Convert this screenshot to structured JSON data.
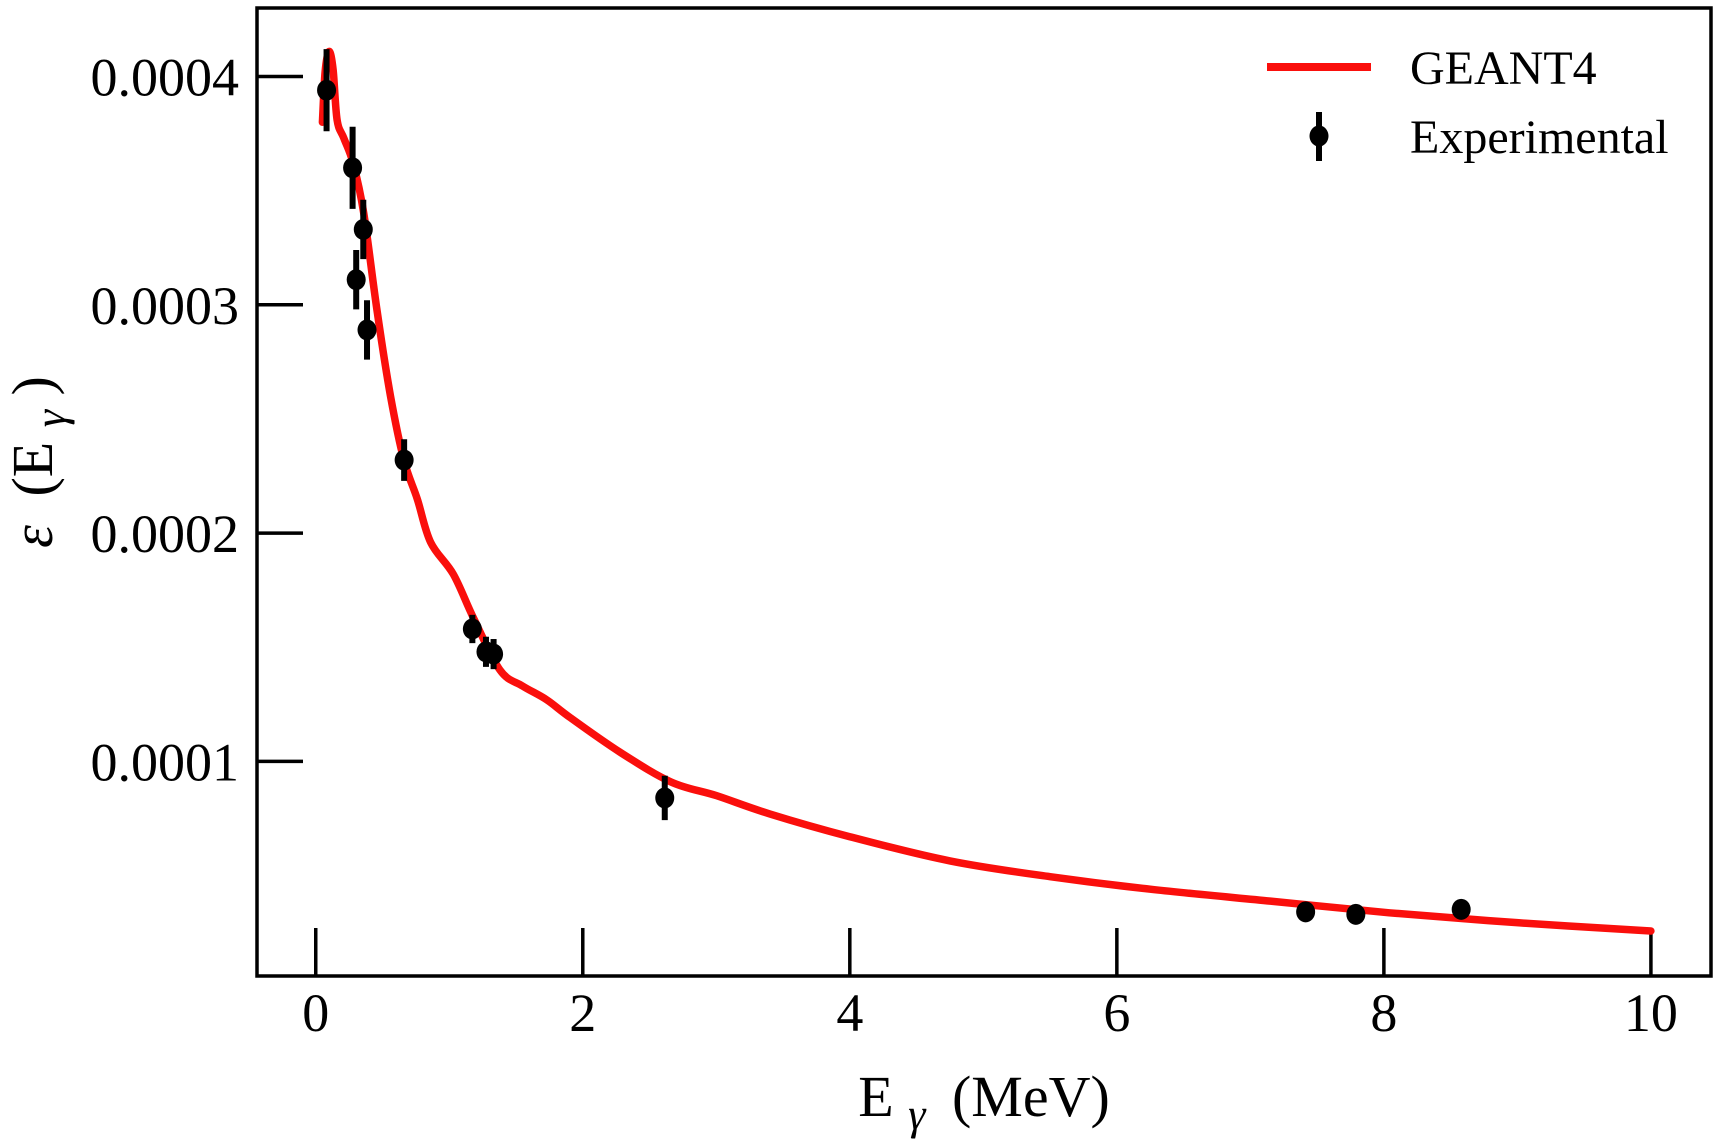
{
  "figure": {
    "background": "#ffffff",
    "frame_color": "#000000"
  },
  "chart_data": {
    "type": "line+scatter",
    "title": "",
    "xlabel": "E_γ (MeV)",
    "ylabel": "ε (E_γ)",
    "xlabel_parts": {
      "base": "E",
      "sub": "γ",
      "rest": "(MeV)"
    },
    "ylabel_parts": {
      "eps": "ε",
      "open": "(E",
      "sub": "γ",
      "close": ")"
    },
    "xlim": [
      -0.44,
      10.45
    ],
    "ylim": [
      6e-06,
      0.00043
    ],
    "x_ticks": [
      0,
      2,
      4,
      6,
      8,
      10
    ],
    "y_ticks": [
      0.0001,
      0.0002,
      0.0003,
      0.0004
    ],
    "grid": false,
    "legend_position": "upper right",
    "series": [
      {
        "name": "GEANT4",
        "type": "line",
        "color": "#fa0f0c",
        "points": [
          [
            0.05,
            0.00038
          ],
          [
            0.07,
            0.000402
          ],
          [
            0.1,
            0.000411
          ],
          [
            0.13,
            0.000403
          ],
          [
            0.16,
            0.000381
          ],
          [
            0.21,
            0.000373
          ],
          [
            0.28,
            0.000362
          ],
          [
            0.36,
            0.00034
          ],
          [
            0.46,
            0.000297
          ],
          [
            0.56,
            0.00026
          ],
          [
            0.66,
            0.000232
          ],
          [
            0.76,
            0.000215
          ],
          [
            0.86,
            0.000196
          ],
          [
            1.03,
            0.000182
          ],
          [
            1.18,
            0.000163
          ],
          [
            1.38,
            0.00014
          ],
          [
            1.55,
            0.000133
          ],
          [
            1.73,
            0.000127
          ],
          [
            1.91,
            0.000119
          ],
          [
            2.28,
            0.000104
          ],
          [
            2.66,
            9.1e-05
          ],
          [
            3.0,
            8.5e-05
          ],
          [
            3.4,
            7.7e-05
          ],
          [
            4.0,
            6.7e-05
          ],
          [
            4.75,
            5.64e-05
          ],
          [
            5.5,
            4.95e-05
          ],
          [
            6.25,
            4.4e-05
          ],
          [
            7.15,
            3.88e-05
          ],
          [
            8.04,
            3.37e-05
          ],
          [
            9.01,
            2.93e-05
          ],
          [
            10.0,
            2.57e-05
          ]
        ]
      },
      {
        "name": "Experimental",
        "type": "scatter",
        "color": "#000000",
        "points_xye": [
          [
            0.081,
            0.000394,
            1.8e-05
          ],
          [
            0.276,
            0.00036,
            1.8e-05
          ],
          [
            0.303,
            0.000311,
            1.3e-05
          ],
          [
            0.356,
            0.000333,
            1.3e-05
          ],
          [
            0.384,
            0.000289,
            1.3e-05
          ],
          [
            0.662,
            0.000232,
            9.1e-06
          ],
          [
            1.173,
            0.000158,
            6.2e-06
          ],
          [
            1.275,
            0.000148,
            6.6e-06
          ],
          [
            1.332,
            0.000147,
            6.6e-06
          ],
          [
            2.614,
            8.4e-05,
            9.7e-06
          ],
          [
            7.414,
            3.41e-05,
            1e-06
          ],
          [
            7.79,
            3.3e-05,
            1e-06
          ],
          [
            8.579,
            3.52e-05,
            1e-06
          ]
        ]
      }
    ]
  }
}
